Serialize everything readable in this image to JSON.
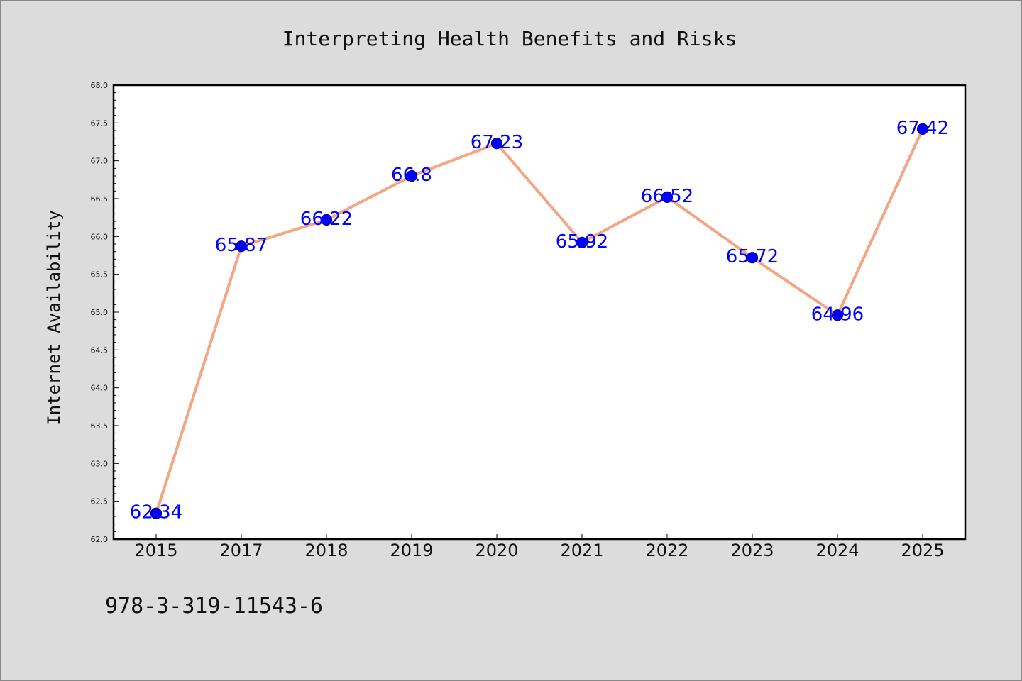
{
  "chart_data": {
    "type": "line",
    "title": "Interpreting Health Benefits and Risks",
    "xlabel": "",
    "ylabel": "Internet Availability",
    "categories": [
      "2015",
      "2017",
      "2018",
      "2019",
      "2020",
      "2021",
      "2022",
      "2023",
      "2024",
      "2025"
    ],
    "series": [
      {
        "values": [
          62.34,
          65.87,
          66.22,
          66.8,
          67.23,
          65.92,
          66.52,
          65.72,
          64.96,
          67.42
        ],
        "data_labels": [
          "62.34",
          "65.87",
          "66.22",
          "66.8",
          "67.23",
          "65.92",
          "66.52",
          "65.72",
          "64.96",
          "67.42"
        ]
      }
    ],
    "ylim": [
      62.0,
      68.0
    ],
    "yticks": [
      "62.0",
      "62.5",
      "63.0",
      "63.5",
      "64.0",
      "64.5",
      "65.0",
      "65.5",
      "66.0",
      "66.5",
      "67.0",
      "67.5",
      "68.0"
    ],
    "grid": false,
    "legend": "none",
    "colors": {
      "background": "#dcdcdc",
      "plot_background": "#ffffff",
      "line": "#f4a582",
      "marker": "#0000ff",
      "marker_edge": "#00008b",
      "data_label": "#0000ff"
    }
  },
  "footnote": "978-3-319-11543-6"
}
